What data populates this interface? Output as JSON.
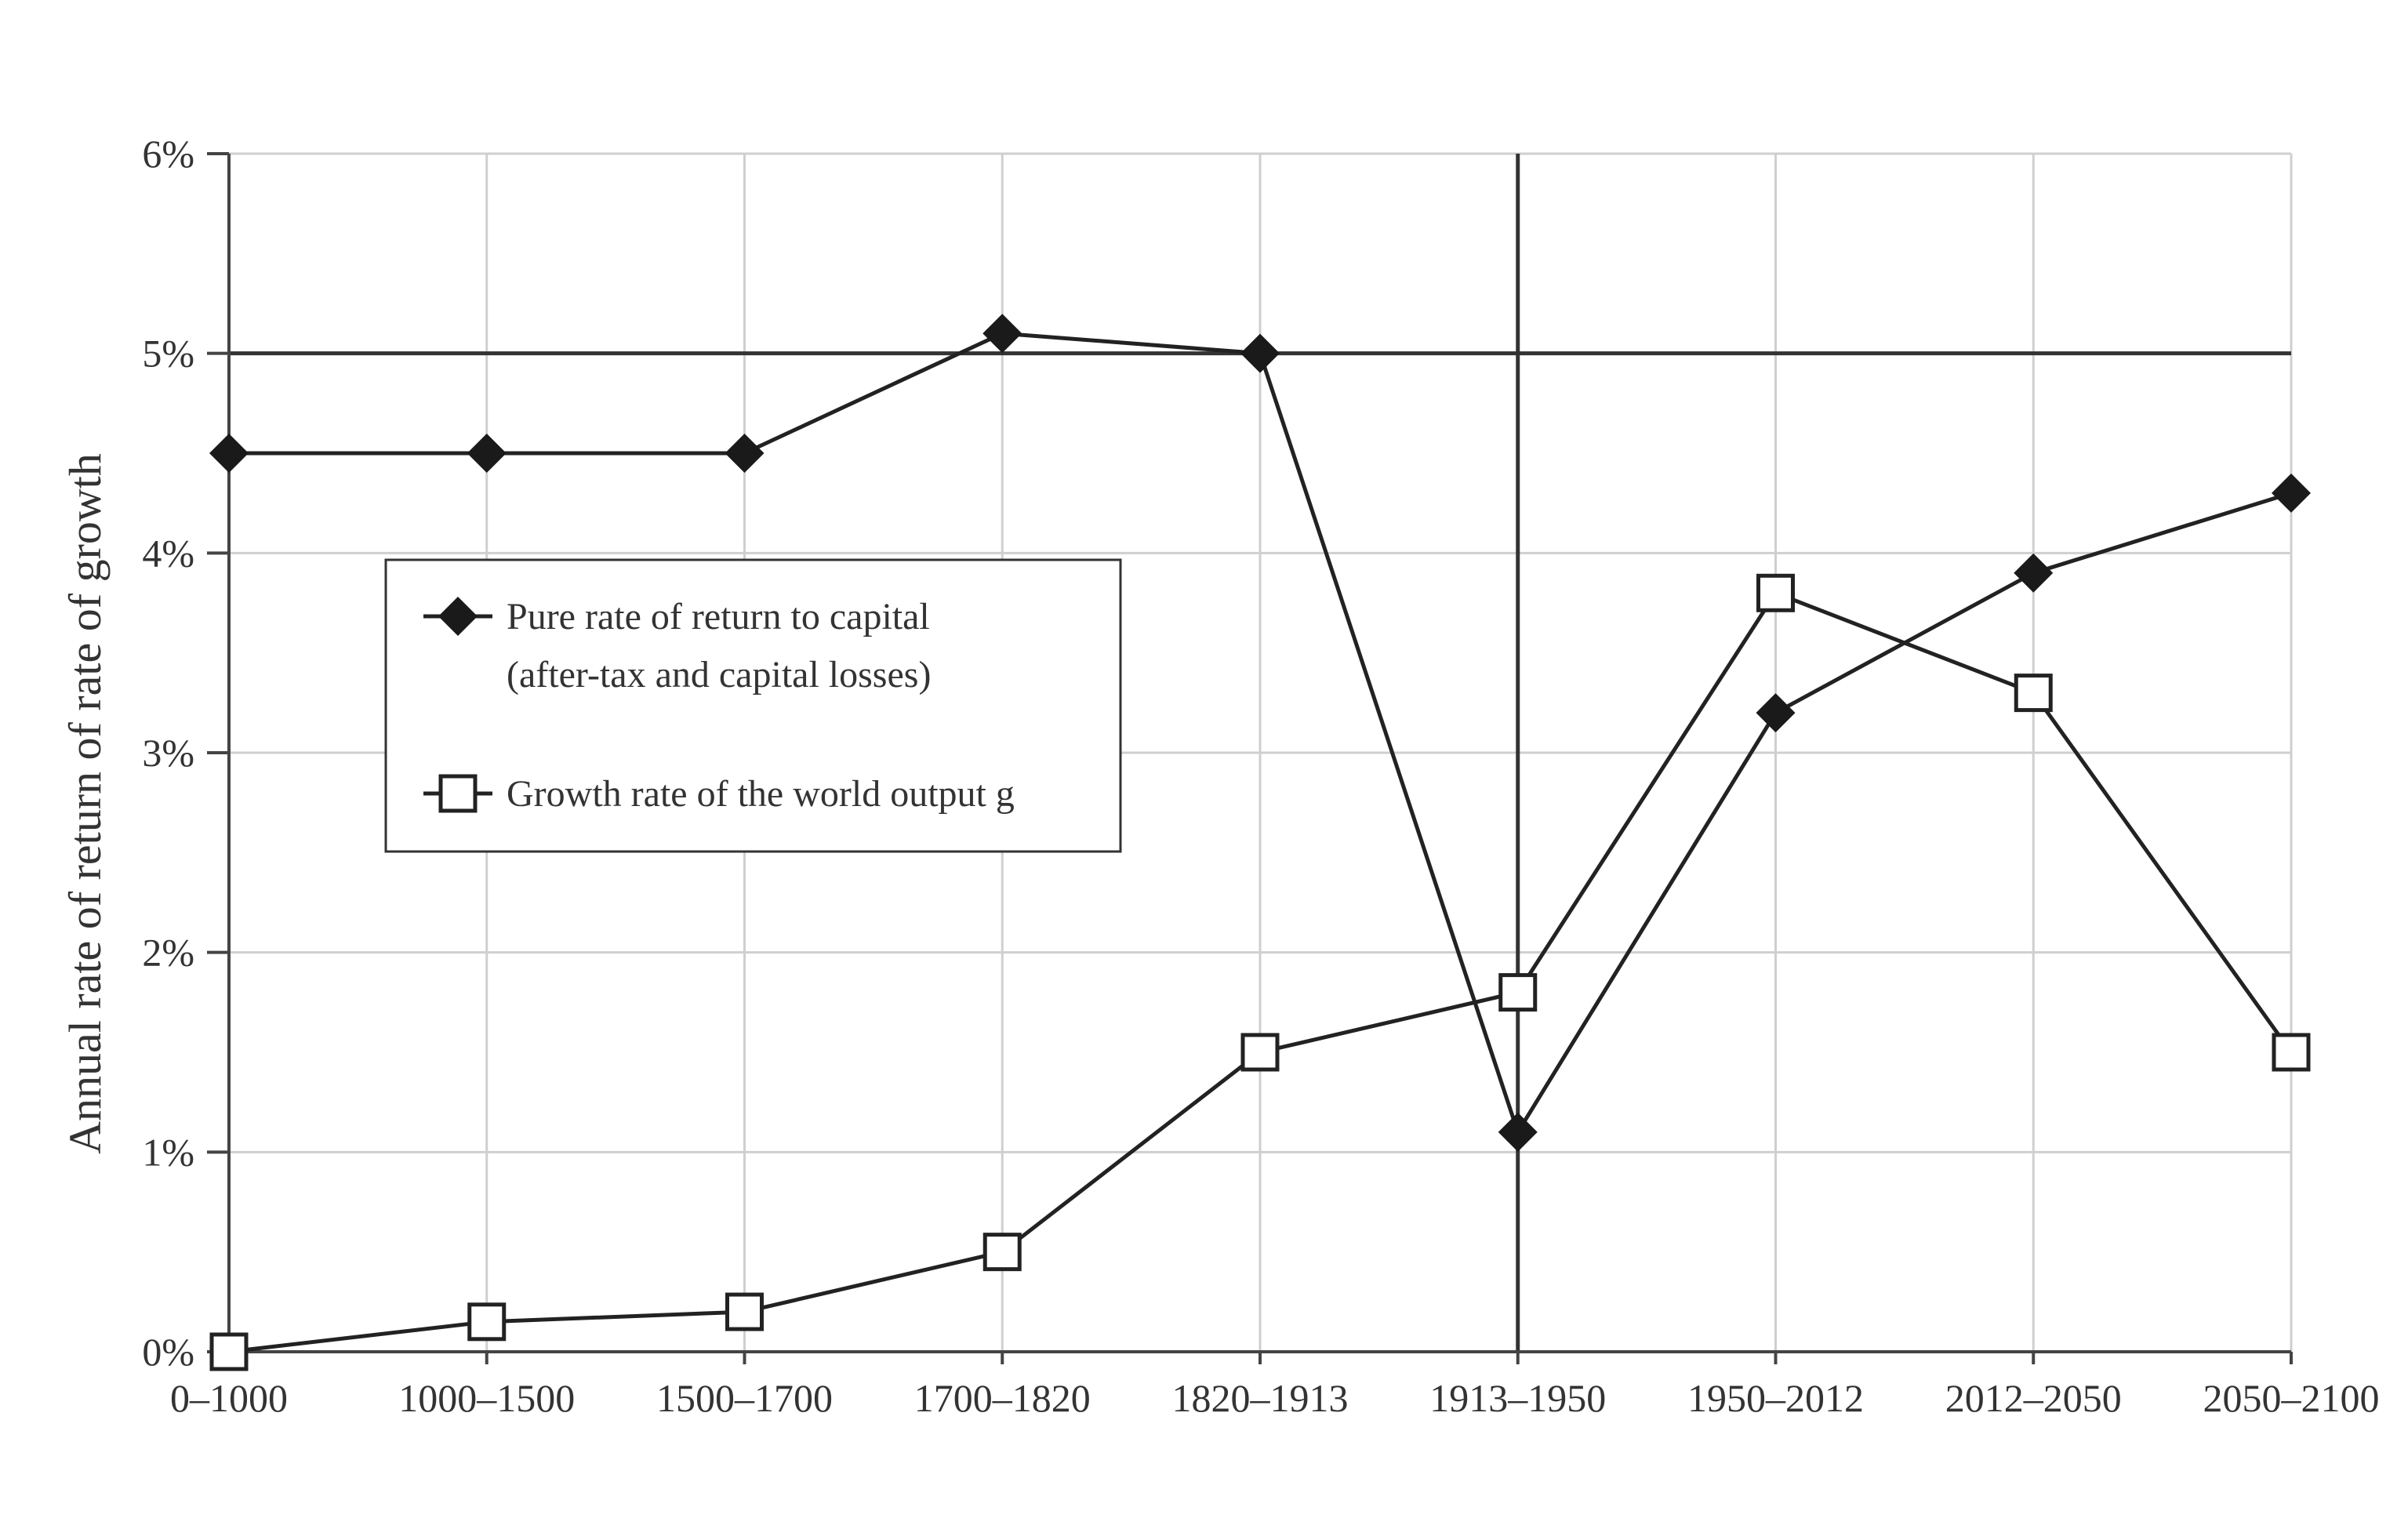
{
  "chart_data": {
    "type": "line",
    "title": "",
    "xlabel": "",
    "ylabel": "Annual rate of return of rate of growth",
    "categories": [
      "0–1000",
      "1000–1500",
      "1500–1700",
      "1700–1820",
      "1820–1913",
      "1913–1950",
      "1950–2012",
      "2012–2050",
      "2050–2100"
    ],
    "yticks": [
      0,
      1,
      2,
      3,
      4,
      5,
      6
    ],
    "ytick_labels": [
      "0%",
      "1%",
      "2%",
      "3%",
      "4%",
      "5%",
      "6%"
    ],
    "ylim": [
      0,
      6
    ],
    "grid": true,
    "reference_lines": {
      "horizontal_y": 5,
      "vertical_category": "1913–1950"
    },
    "legend": {
      "placement": "center-left",
      "entries": [
        {
          "line1": "Pure rate of return to capital",
          "line2": "(after-tax and capital losses)"
        },
        {
          "line1": "Growth rate of the world output g",
          "line2": ""
        }
      ]
    },
    "series": [
      {
        "marker": "filled-diamond",
        "values": [
          4.5,
          4.5,
          4.5,
          5.1,
          5.0,
          1.1,
          3.2,
          3.9,
          4.3
        ]
      },
      {
        "marker": "open-square",
        "values": [
          0.0,
          0.15,
          0.2,
          0.5,
          1.5,
          1.8,
          3.8,
          3.3,
          1.5
        ]
      }
    ]
  }
}
